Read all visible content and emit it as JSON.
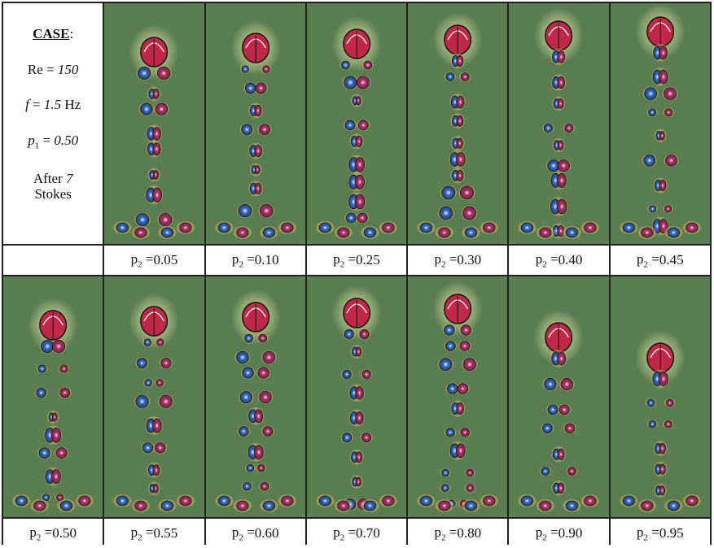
{
  "case_box": {
    "title": "CASE",
    "title_suffix": ":",
    "re_label": "Re = ",
    "re_value": "150",
    "f_symbol": "f",
    "f_eq": " = ",
    "f_value": "1.5",
    "f_unit": " Hz",
    "p1_symbol": "p",
    "p1_sub": "1",
    "p1_eq": " = ",
    "p1_value": "0.50",
    "after_word": "After ",
    "after_value": "7",
    "strokes_word": "Stokes"
  },
  "panel_label": {
    "symbol": "p",
    "sub": "2",
    "eq": " = "
  },
  "row1": [
    "0.05",
    "0.10",
    "0.25",
    "0.30",
    "0.40",
    "0.45"
  ],
  "row2": [
    "0.50",
    "0.55",
    "0.60",
    "0.70",
    "0.80",
    "0.90",
    "0.95"
  ],
  "colors": {
    "background": "#5a7d52",
    "positive": "#b0205e",
    "negative": "#2a60c8",
    "outline": "#111111",
    "glow": "#f3f5b0",
    "ring": "#d8b060"
  }
}
